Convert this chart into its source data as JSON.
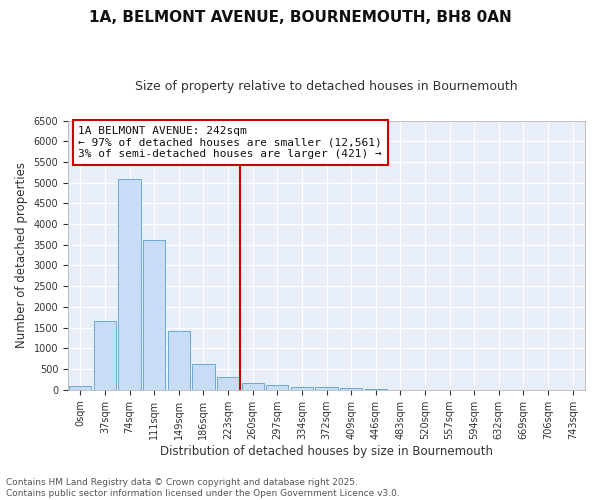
{
  "title": "1A, BELMONT AVENUE, BOURNEMOUTH, BH8 0AN",
  "subtitle": "Size of property relative to detached houses in Bournemouth",
  "xlabel": "Distribution of detached houses by size in Bournemouth",
  "ylabel": "Number of detached properties",
  "bar_color": "#c8dcf5",
  "bar_edge_color": "#6aaad4",
  "figure_bg": "#ffffff",
  "axes_bg": "#e8eef8",
  "grid_color": "#ffffff",
  "categories": [
    "0sqm",
    "37sqm",
    "74sqm",
    "111sqm",
    "149sqm",
    "186sqm",
    "223sqm",
    "260sqm",
    "297sqm",
    "334sqm",
    "372sqm",
    "409sqm",
    "446sqm",
    "483sqm",
    "520sqm",
    "557sqm",
    "594sqm",
    "632sqm",
    "669sqm",
    "706sqm",
    "743sqm"
  ],
  "values": [
    80,
    1650,
    5100,
    3620,
    1430,
    620,
    310,
    155,
    115,
    75,
    55,
    35,
    25,
    0,
    0,
    0,
    0,
    0,
    0,
    0,
    0
  ],
  "ylim": [
    0,
    6500
  ],
  "yticks": [
    0,
    500,
    1000,
    1500,
    2000,
    2500,
    3000,
    3500,
    4000,
    4500,
    5000,
    5500,
    6000,
    6500
  ],
  "vline_x": 6.5,
  "vline_color": "#cc0000",
  "annotation_line1": "1A BELMONT AVENUE: 242sqm",
  "annotation_line2": "← 97% of detached houses are smaller (12,561)",
  "annotation_line3": "3% of semi-detached houses are larger (421) →",
  "annotation_box_color": "#ffffff",
  "annotation_box_edge": "#cc0000",
  "footer_line1": "Contains HM Land Registry data © Crown copyright and database right 2025.",
  "footer_line2": "Contains public sector information licensed under the Open Government Licence v3.0.",
  "title_fontsize": 11,
  "subtitle_fontsize": 9,
  "tick_fontsize": 7,
  "label_fontsize": 8.5,
  "annotation_fontsize": 8,
  "footer_fontsize": 6.5
}
